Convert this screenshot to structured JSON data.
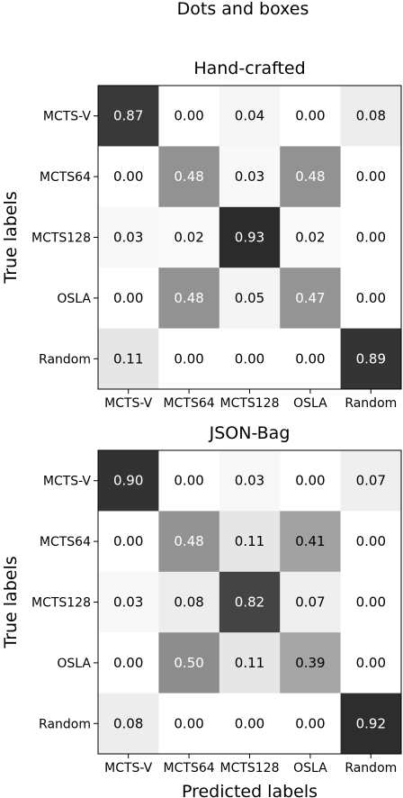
{
  "figure": {
    "suptitle": "Dots and boxes"
  },
  "chart_data": [
    {
      "type": "heatmap",
      "title": "Hand-crafted",
      "xlabel": "",
      "ylabel": "True labels",
      "x_categories": [
        "MCTS-V",
        "MCTS64",
        "MCTS128",
        "OSLA",
        "Random"
      ],
      "y_categories": [
        "MCTS-V",
        "MCTS64",
        "MCTS128",
        "OSLA",
        "Random"
      ],
      "values": [
        [
          "0.87",
          "0.00",
          "0.04",
          "0.00",
          "0.08"
        ],
        [
          "0.00",
          "0.48",
          "0.03",
          "0.48",
          "0.00"
        ],
        [
          "0.03",
          "0.02",
          "0.93",
          "0.02",
          "0.00"
        ],
        [
          "0.00",
          "0.48",
          "0.05",
          "0.47",
          "0.00"
        ],
        [
          "0.11",
          "0.00",
          "0.00",
          "0.00",
          "0.89"
        ]
      ],
      "colormap": "Greys",
      "vrange": [
        0,
        1
      ]
    },
    {
      "type": "heatmap",
      "title": "JSON-Bag",
      "xlabel": "Predicted labels",
      "ylabel": "True labels",
      "x_categories": [
        "MCTS-V",
        "MCTS64",
        "MCTS128",
        "OSLA",
        "Random"
      ],
      "y_categories": [
        "MCTS-V",
        "MCTS64",
        "MCTS128",
        "OSLA",
        "Random"
      ],
      "values": [
        [
          "0.90",
          "0.00",
          "0.03",
          "0.00",
          "0.07"
        ],
        [
          "0.00",
          "0.48",
          "0.11",
          "0.41",
          "0.00"
        ],
        [
          "0.03",
          "0.08",
          "0.82",
          "0.07",
          "0.00"
        ],
        [
          "0.00",
          "0.50",
          "0.11",
          "0.39",
          "0.00"
        ],
        [
          "0.08",
          "0.00",
          "0.00",
          "0.00",
          "0.92"
        ]
      ],
      "colormap": "Greys",
      "vrange": [
        0,
        1
      ]
    }
  ]
}
